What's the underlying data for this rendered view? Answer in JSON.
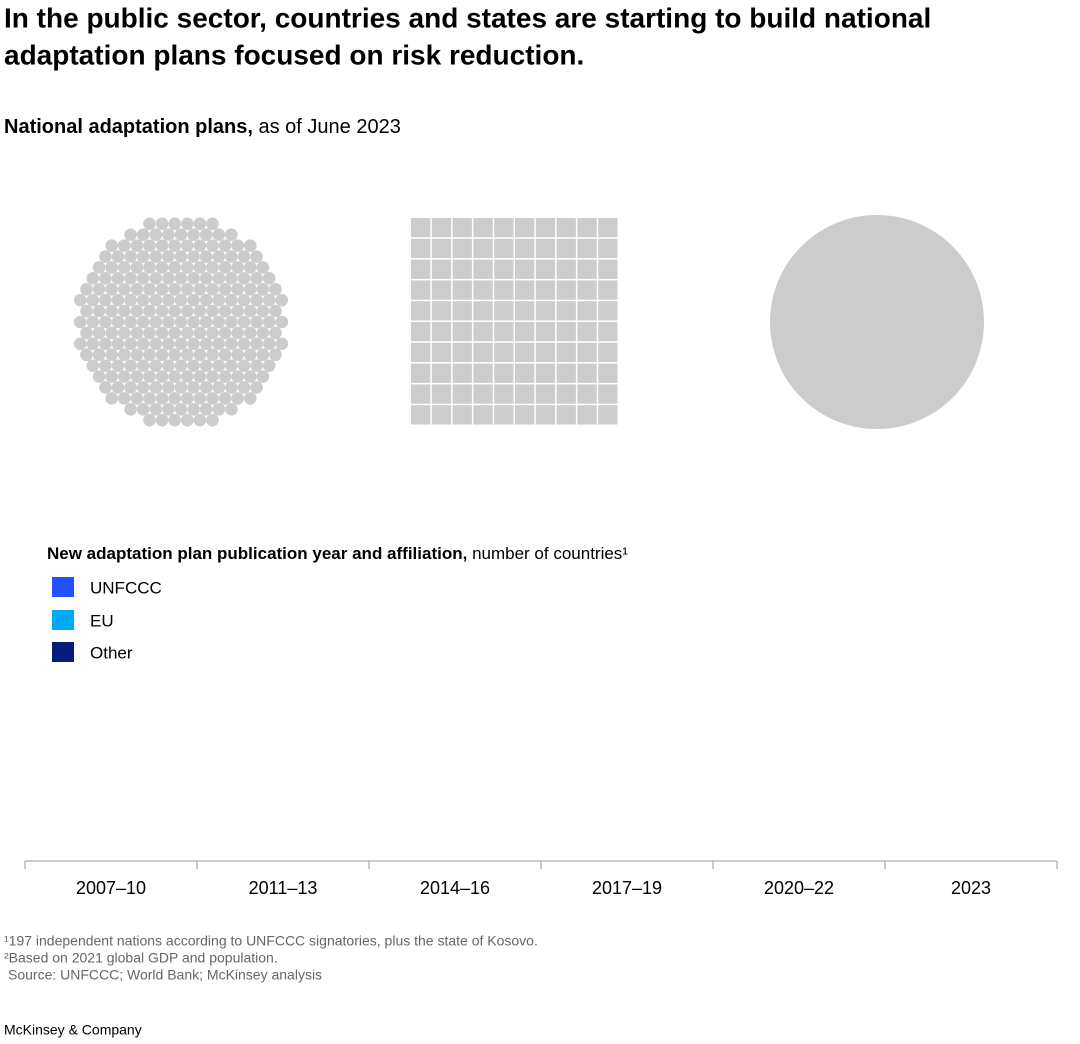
{
  "header": {
    "title_lines": [
      "In the public sector, countries and states are starting to build national",
      "adaptation plans focused on risk reduction."
    ],
    "subtitle_bold": "National adaptation plans,",
    "subtitle_rest": "as of June 2023"
  },
  "legend": {
    "title_bold": "New adaptation plan publication year and affiliation,",
    "title_rest": "number of countries¹",
    "items": [
      {
        "name": "UNFCCC",
        "color": "#2251ff"
      },
      {
        "name": "EU",
        "color": "#00a9f4"
      },
      {
        "name": "Other",
        "color": "#051c7a"
      }
    ]
  },
  "timeline": {
    "labels": [
      "2007–10",
      "2011–13",
      "2014–16",
      "2017–19",
      "2020–22",
      "2023"
    ]
  },
  "footnotes": [
    "¹197 independent nations according to UNFCCC signatories, plus the state of Kosovo.",
    "²Based on 2021 global GDP and population.",
    "Source: UNFCCC; World Bank; McKinsey analysis"
  ],
  "brand": "McKinsey & Company"
}
